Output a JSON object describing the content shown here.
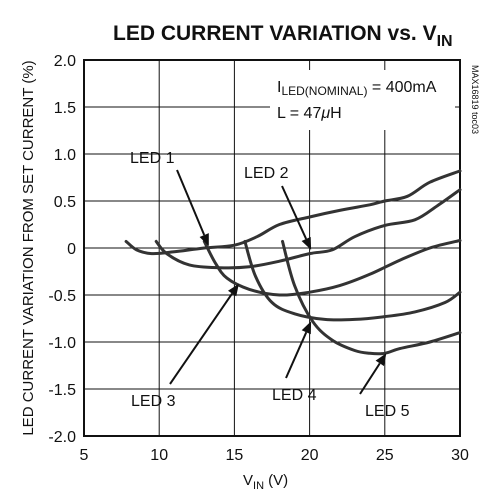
{
  "chart_data": {
    "type": "line",
    "title": "LED CURRENT VARIATION vs. V",
    "title_sub": "IN",
    "xlabel": "V",
    "xlabel_sub": "IN",
    "xlabel_unit": " (V)",
    "ylabel": "LED CURRENT VARIATION FROM SET CURRENT (%)",
    "xlim": [
      5,
      30
    ],
    "ylim": [
      -2.0,
      2.0
    ],
    "x_ticks": [
      5,
      10,
      15,
      20,
      25,
      30
    ],
    "x_tick_labels": [
      "5",
      "10",
      "15",
      "20",
      "25",
      "30"
    ],
    "y_ticks": [
      2.0,
      1.5,
      1.0,
      0.5,
      0,
      -0.5,
      -1.0,
      -1.5,
      -2.0
    ],
    "y_tick_labels": [
      "2.0",
      "1.5",
      "1.0",
      "0.5",
      "0",
      "-0.5",
      "-1.0",
      "-1.5",
      "-2.0"
    ],
    "grid": true,
    "annotations": [
      "I",
      "LED(NOMINAL)",
      " = 400mA",
      "L = 47",
      "μ",
      "H"
    ],
    "part_id": "MAX16819 toc03",
    "series": [
      {
        "name": "LED 1",
        "x": [
          7.8,
          8.5,
          9.5,
          11,
          13,
          15,
          16.5,
          18,
          20,
          22,
          24,
          25,
          26.5,
          28,
          30
        ],
        "y": [
          0.07,
          -0.02,
          -0.06,
          -0.04,
          0.0,
          0.03,
          0.12,
          0.25,
          0.33,
          0.4,
          0.46,
          0.5,
          0.55,
          0.7,
          0.82
        ]
      },
      {
        "name": "LED 2",
        "x": [
          9.8,
          10.5,
          12,
          14,
          16,
          18,
          20,
          21.5,
          23,
          25,
          27,
          28.5,
          30
        ],
        "y": [
          0.07,
          -0.06,
          -0.18,
          -0.21,
          -0.2,
          -0.14,
          -0.06,
          -0.02,
          0.12,
          0.24,
          0.3,
          0.45,
          0.62
        ]
      },
      {
        "name": "LED 3",
        "x": [
          13.0,
          13.7,
          14.5,
          16,
          18,
          20,
          22,
          24,
          26,
          28,
          30
        ],
        "y": [
          0.07,
          -0.15,
          -0.32,
          -0.44,
          -0.5,
          -0.47,
          -0.4,
          -0.28,
          -0.13,
          0.0,
          0.08
        ]
      },
      {
        "name": "LED 4",
        "x": [
          15.7,
          16.4,
          17.5,
          19,
          21,
          23,
          25,
          27,
          29,
          30
        ],
        "y": [
          0.07,
          -0.3,
          -0.58,
          -0.7,
          -0.76,
          -0.76,
          -0.73,
          -0.68,
          -0.58,
          -0.47
        ]
      },
      {
        "name": "LED 5",
        "x": [
          18.2,
          19.0,
          20.2,
          21.5,
          23,
          24,
          25,
          26,
          28,
          30
        ],
        "y": [
          0.07,
          -0.4,
          -0.78,
          -0.98,
          -1.09,
          -1.12,
          -1.12,
          -1.07,
          -1.0,
          -0.9
        ]
      }
    ],
    "series_label_anchors": [
      {
        "text": "LED 1",
        "x": 13.3,
        "y": 0.02
      },
      {
        "text": "LED 2",
        "x": 20.1,
        "y": -0.02
      },
      {
        "text": "LED 3",
        "x": 15.3,
        "y": -0.38
      },
      {
        "text": "LED 4",
        "x": 20.1,
        "y": -0.78
      },
      {
        "text": "LED 5",
        "x": 25.1,
        "y": -1.12
      }
    ],
    "colors": {
      "line": "#333333",
      "grid": "#111111",
      "axes": "#111111"
    }
  }
}
